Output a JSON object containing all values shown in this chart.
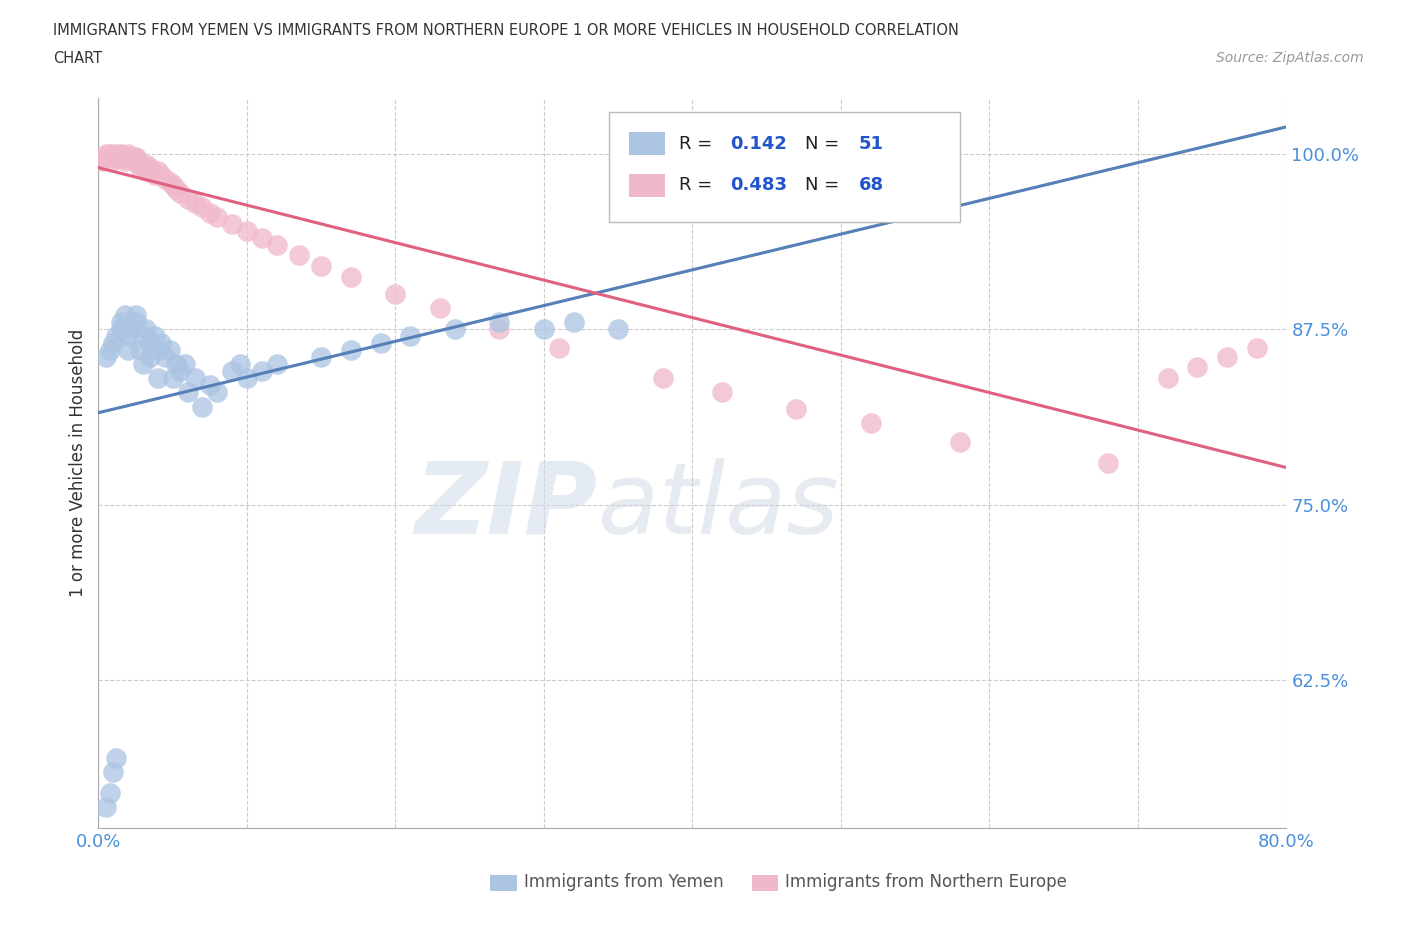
{
  "title_line1": "IMMIGRANTS FROM YEMEN VS IMMIGRANTS FROM NORTHERN EUROPE 1 OR MORE VEHICLES IN HOUSEHOLD CORRELATION",
  "title_line2": "CHART",
  "source": "Source: ZipAtlas.com",
  "ylabel": "1 or more Vehicles in Household",
  "xlim": [
    0.0,
    0.8
  ],
  "ylim": [
    0.52,
    1.04
  ],
  "yticks": [
    0.625,
    0.75,
    0.875,
    1.0
  ],
  "ytick_labels": [
    "62.5%",
    "75.0%",
    "87.5%",
    "100.0%"
  ],
  "xticks": [
    0.0,
    0.1,
    0.2,
    0.3,
    0.4,
    0.5,
    0.6,
    0.7,
    0.8
  ],
  "xtick_labels": [
    "0.0%",
    "",
    "",
    "",
    "",
    "",
    "",
    "",
    "80.0%"
  ],
  "R_yemen": 0.142,
  "N_yemen": 51,
  "R_north_europe": 0.483,
  "N_north_europe": 68,
  "color_yemen": "#aac4e2",
  "color_north_europe": "#f0b8cb",
  "line_color_yemen": "#5580b8",
  "line_color_north_europe": "#e06080",
  "legend_blue": "Immigrants from Yemen",
  "legend_pink": "Immigrants from Northern Europe",
  "watermark_zip": "ZIP",
  "watermark_atlas": "atlas",
  "yemen_x": [
    0.005,
    0.008,
    0.01,
    0.012,
    0.015,
    0.015,
    0.018,
    0.02,
    0.02,
    0.022,
    0.025,
    0.025,
    0.028,
    0.03,
    0.03,
    0.032,
    0.035,
    0.035,
    0.038,
    0.04,
    0.04,
    0.042,
    0.045,
    0.048,
    0.05,
    0.052,
    0.055,
    0.058,
    0.06,
    0.065,
    0.07,
    0.075,
    0.08,
    0.09,
    0.095,
    0.1,
    0.11,
    0.12,
    0.15,
    0.17,
    0.19,
    0.21,
    0.24,
    0.27,
    0.3,
    0.32,
    0.35,
    0.005,
    0.008,
    0.01,
    0.012
  ],
  "yemen_y": [
    0.855,
    0.86,
    0.865,
    0.87,
    0.875,
    0.88,
    0.885,
    0.86,
    0.87,
    0.875,
    0.88,
    0.885,
    0.86,
    0.85,
    0.87,
    0.875,
    0.855,
    0.865,
    0.87,
    0.84,
    0.86,
    0.865,
    0.855,
    0.86,
    0.84,
    0.85,
    0.845,
    0.85,
    0.83,
    0.84,
    0.82,
    0.835,
    0.83,
    0.845,
    0.85,
    0.84,
    0.845,
    0.85,
    0.855,
    0.86,
    0.865,
    0.87,
    0.875,
    0.88,
    0.875,
    0.88,
    0.875,
    0.535,
    0.545,
    0.56,
    0.57
  ],
  "north_europe_x": [
    0.002,
    0.004,
    0.005,
    0.006,
    0.007,
    0.008,
    0.009,
    0.01,
    0.01,
    0.012,
    0.013,
    0.014,
    0.015,
    0.015,
    0.016,
    0.017,
    0.018,
    0.019,
    0.02,
    0.02,
    0.022,
    0.023,
    0.024,
    0.025,
    0.025,
    0.026,
    0.027,
    0.028,
    0.03,
    0.03,
    0.032,
    0.033,
    0.035,
    0.036,
    0.038,
    0.04,
    0.042,
    0.045,
    0.048,
    0.05,
    0.052,
    0.055,
    0.06,
    0.065,
    0.07,
    0.075,
    0.08,
    0.09,
    0.1,
    0.11,
    0.12,
    0.135,
    0.15,
    0.17,
    0.2,
    0.23,
    0.27,
    0.31,
    0.38,
    0.42,
    0.47,
    0.52,
    0.58,
    0.68,
    0.72,
    0.74,
    0.76,
    0.78
  ],
  "north_europe_y": [
    0.995,
    0.998,
    1.0,
    0.997,
    1.0,
    0.998,
    0.995,
    1.0,
    0.998,
    0.997,
    1.0,
    0.998,
    0.997,
    1.0,
    0.998,
    0.997,
    0.995,
    0.998,
    0.997,
    1.0,
    0.998,
    0.997,
    0.995,
    0.998,
    0.997,
    0.995,
    0.993,
    0.99,
    0.99,
    0.992,
    0.988,
    0.992,
    0.99,
    0.988,
    0.985,
    0.988,
    0.985,
    0.982,
    0.98,
    0.978,
    0.975,
    0.972,
    0.968,
    0.965,
    0.962,
    0.958,
    0.955,
    0.95,
    0.945,
    0.94,
    0.935,
    0.928,
    0.92,
    0.912,
    0.9,
    0.89,
    0.875,
    0.862,
    0.84,
    0.83,
    0.818,
    0.808,
    0.795,
    0.78,
    0.84,
    0.848,
    0.855,
    0.862
  ]
}
